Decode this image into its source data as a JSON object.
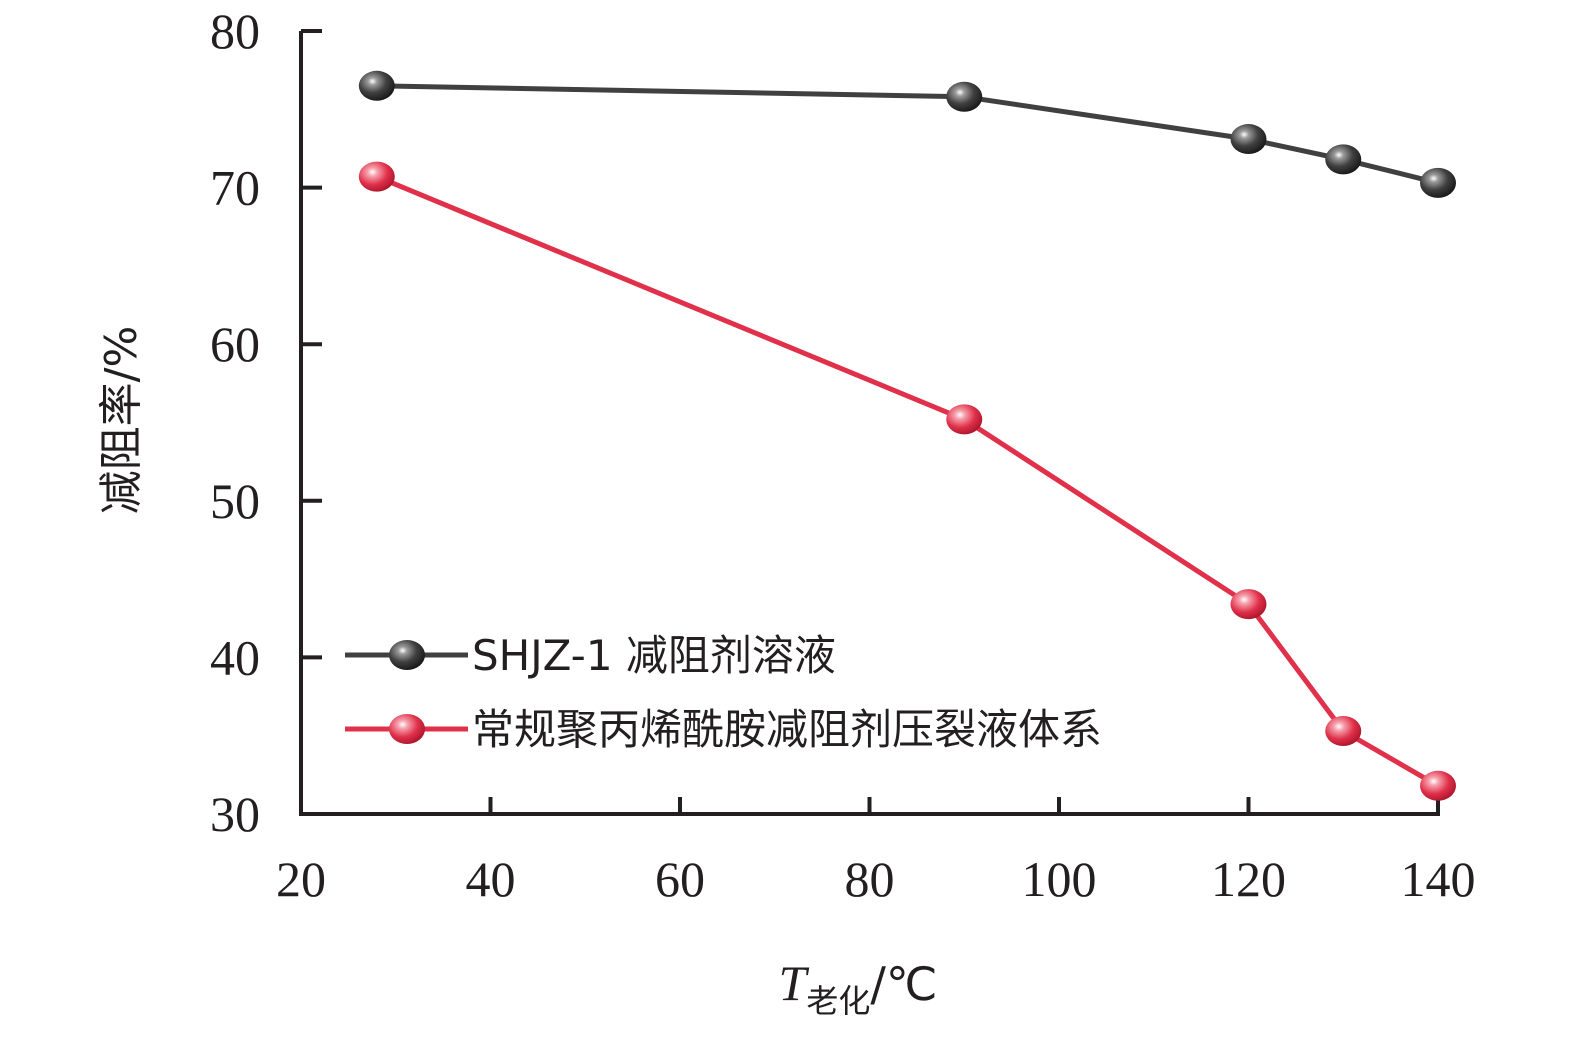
{
  "chart_data": {
    "type": "line",
    "x": [
      28,
      90,
      120,
      130,
      140
    ],
    "series": [
      {
        "name": "SHJZ-1 减阻剂溶液",
        "values": [
          76.5,
          75.8,
          73.1,
          71.8,
          70.3
        ],
        "color": "#404040"
      },
      {
        "name": "常规聚丙烯酰胺减阻剂压裂液体系",
        "values": [
          70.7,
          55.2,
          43.4,
          35.3,
          31.8
        ],
        "color": "#e0304a"
      }
    ],
    "xlim": [
      20,
      140
    ],
    "ylim": [
      30,
      80
    ],
    "xticks": [
      "20",
      "40",
      "60",
      "80",
      "100",
      "120",
      "140"
    ],
    "yticks": [
      "30",
      "40",
      "50",
      "60",
      "70",
      "80"
    ],
    "xlabel_main": "T",
    "xlabel_sub": "老化",
    "xlabel_unit": "/℃",
    "ylabel": "减阻率/%",
    "grid": false,
    "legend_position": "lower-left"
  }
}
